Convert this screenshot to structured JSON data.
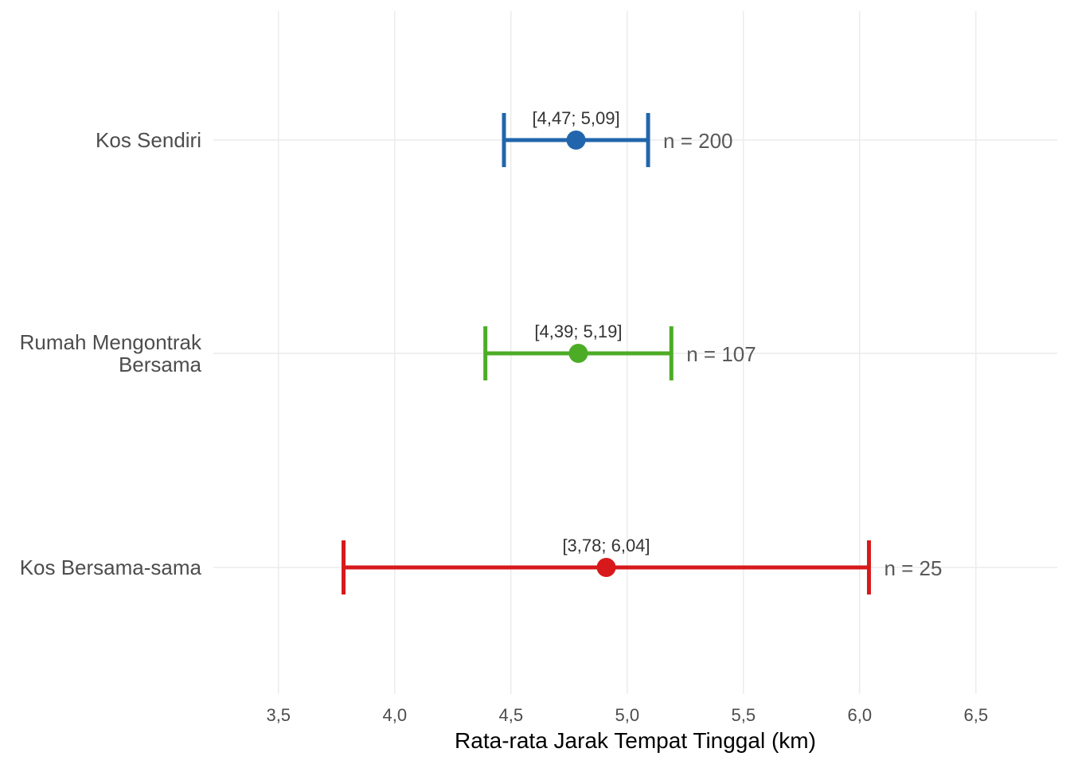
{
  "chart_data": {
    "type": "errorbar",
    "title": "",
    "xlabel": "Rata-rata Jarak Tempat Tinggal (km)",
    "ylabel": "",
    "xlim": [
      3.22,
      6.85
    ],
    "xticks": [
      3.5,
      4.0,
      4.5,
      5.0,
      5.5,
      6.0,
      6.5
    ],
    "xtick_labels": [
      "3,5",
      "4,0",
      "4,5",
      "5,0",
      "5,5",
      "6,0",
      "6,5"
    ],
    "grid": true,
    "series": [
      {
        "category": "Kos Sendiri",
        "category_lines": [
          "Kos Sendiri"
        ],
        "mean": 4.78,
        "lower": 4.47,
        "upper": 5.09,
        "ci_label": "[4,47; 5,09]",
        "n_label": "n = 200",
        "color": "#2166ac"
      },
      {
        "category": "Rumah Mengontrak Bersama",
        "category_lines": [
          "Rumah Mengontrak",
          "Bersama"
        ],
        "mean": 4.79,
        "lower": 4.39,
        "upper": 5.19,
        "ci_label": "[4,39; 5,19]",
        "n_label": "n = 107",
        "color": "#4dac26"
      },
      {
        "category": "Kos Bersama-sama",
        "category_lines": [
          "Kos Bersama-sama"
        ],
        "mean": 4.91,
        "lower": 3.78,
        "upper": 6.04,
        "ci_label": "[3,78; 6,04]",
        "n_label": "n = 25",
        "color": "#d7191c"
      }
    ]
  }
}
